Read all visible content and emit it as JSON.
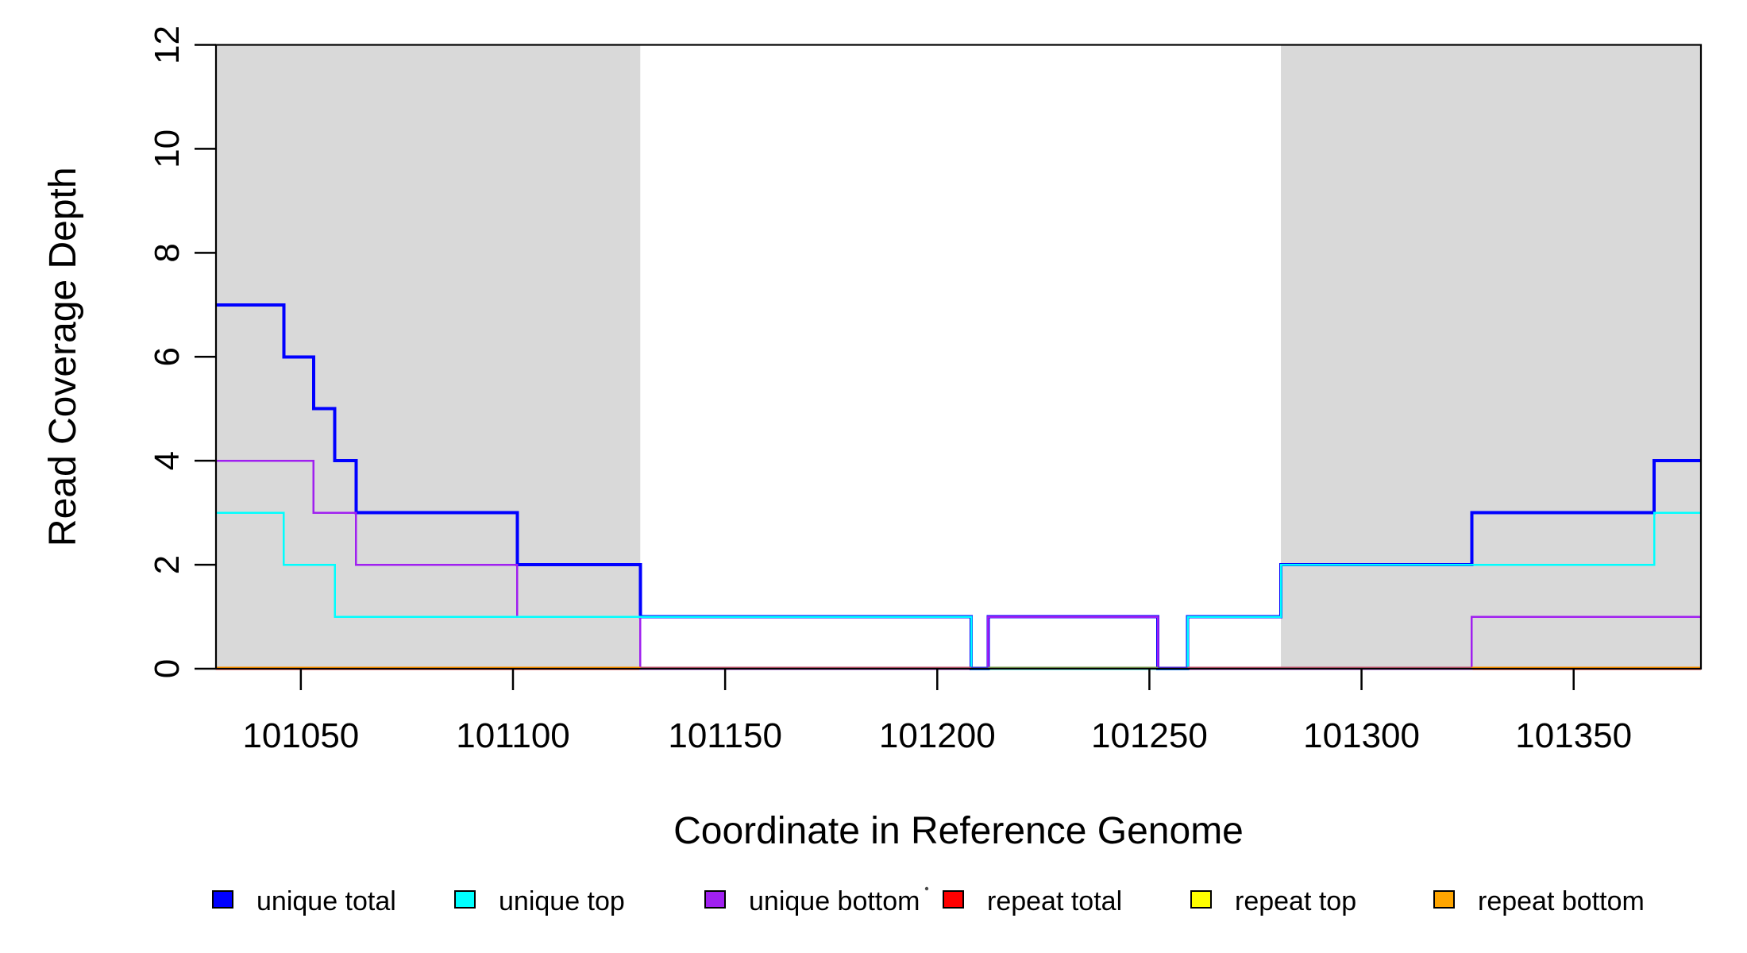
{
  "chart_data": {
    "type": "line",
    "subtype": "step-coverage",
    "title": "",
    "xlabel": "Coordinate in Reference Genome",
    "ylabel": "Read Coverage Depth",
    "xlim": [
      101030,
      101380
    ],
    "ylim": [
      0,
      12
    ],
    "x_ticks": [
      101050,
      101100,
      101150,
      101200,
      101250,
      101300,
      101350
    ],
    "y_ticks": [
      0,
      2,
      4,
      6,
      8,
      10,
      12
    ],
    "grid": "off",
    "frame_box": true,
    "colors": {
      "background": "#FFFFFF",
      "frame": "#000000",
      "shade": "#D9D9D9"
    },
    "shaded_regions": [
      {
        "x0": 101030,
        "x1": 101130
      },
      {
        "x0": 101281,
        "x1": 101380
      }
    ],
    "series": [
      {
        "name": "unique total",
        "color": "#0000FF",
        "width": 4,
        "z": 3,
        "steps": [
          [
            101030,
            7
          ],
          [
            101046,
            6
          ],
          [
            101053,
            5
          ],
          [
            101058,
            4
          ],
          [
            101063,
            3
          ],
          [
            101101,
            2
          ],
          [
            101130,
            1
          ],
          [
            101208,
            0
          ],
          [
            101212,
            1
          ],
          [
            101252,
            0
          ],
          [
            101259,
            1
          ],
          [
            101281,
            2
          ],
          [
            101326,
            3
          ],
          [
            101369,
            4
          ],
          [
            101380,
            4
          ]
        ]
      },
      {
        "name": "unique top",
        "color": "#00FFFF",
        "width": 2.5,
        "z": 5,
        "steps": [
          [
            101030,
            3
          ],
          [
            101046,
            2
          ],
          [
            101058,
            1
          ],
          [
            101208,
            0
          ],
          [
            101259,
            1
          ],
          [
            101281,
            2
          ],
          [
            101369,
            3
          ],
          [
            101380,
            3
          ]
        ]
      },
      {
        "name": "unique bottom",
        "color": "#A020F0",
        "width": 2.5,
        "z": 4,
        "steps": [
          [
            101030,
            4
          ],
          [
            101053,
            3
          ],
          [
            101063,
            2
          ],
          [
            101101,
            1
          ],
          [
            101130,
            0
          ],
          [
            101212,
            1
          ],
          [
            101252,
            0
          ],
          [
            101326,
            1
          ],
          [
            101380,
            1
          ]
        ]
      },
      {
        "name": "repeat total",
        "color": "#FF0000",
        "width": 2.5,
        "z": 2,
        "steps": [
          [
            101030,
            0
          ],
          [
            101380,
            0
          ]
        ]
      },
      {
        "name": "repeat top",
        "color": "#FFFF00",
        "width": 2.5,
        "z": 1,
        "steps": [
          [
            101030,
            0
          ],
          [
            101380,
            0
          ]
        ]
      },
      {
        "name": "repeat bottom",
        "color": "#FFA500",
        "width": 2.5,
        "z": 0,
        "steps": [
          [
            101030,
            0
          ],
          [
            101380,
            0
          ]
        ]
      }
    ],
    "baseline_blend_segments": [
      {
        "x0": 101030,
        "x1": 101130,
        "color": "#FF9300"
      },
      {
        "x0": 101130,
        "x1": 101208,
        "color": "#C25C72"
      },
      {
        "x0": 101208,
        "x1": 101212,
        "color": "#4444D4"
      },
      {
        "x0": 101212,
        "x1": 101252,
        "color": "#7E9C55"
      },
      {
        "x0": 101252,
        "x1": 101259,
        "color": "#5632D2"
      },
      {
        "x0": 101259,
        "x1": 101326,
        "color": "#C25C72"
      },
      {
        "x0": 101326,
        "x1": 101380,
        "color": "#FF9300"
      }
    ],
    "legend": {
      "position": "bottom",
      "items": [
        {
          "label": "unique total",
          "color": "#0000FF"
        },
        {
          "label": "unique top",
          "color": "#00FFFF"
        },
        {
          "label": "unique bottom",
          "color": "#A020F0"
        },
        {
          "label": "repeat total",
          "color": "#FF0000"
        },
        {
          "label": "repeat top",
          "color": "#FFFF00"
        },
        {
          "label": "repeat bottom",
          "color": "#FFA500"
        }
      ]
    }
  }
}
